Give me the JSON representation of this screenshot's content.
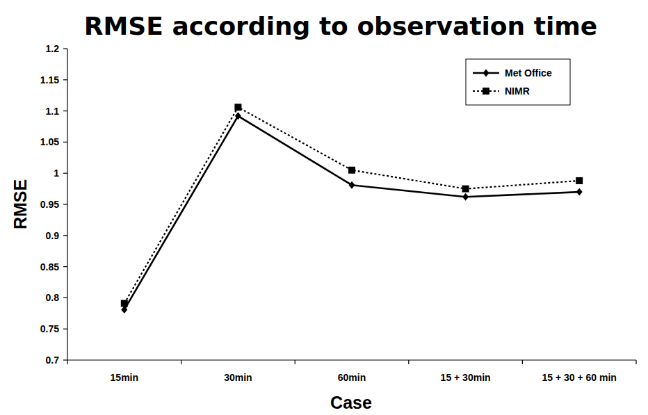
{
  "chart_data": {
    "type": "line",
    "title": "RMSE according to observation time",
    "x_label": "Case",
    "y_label": "RMSE",
    "categories": [
      "15min",
      "30min",
      "60min",
      "15 + 30min",
      "15 + 30 + 60 min"
    ],
    "series": [
      {
        "name": "Met Office",
        "color": "#000000",
        "marker": "diamond",
        "line_style": "solid",
        "values": [
          0.781,
          1.092,
          0.981,
          0.962,
          0.97
        ]
      },
      {
        "name": "NIMR",
        "color": "#000000",
        "marker": "square",
        "line_style": "dotted",
        "values": [
          0.791,
          1.106,
          1.005,
          0.975,
          0.988
        ]
      }
    ],
    "ylim": [
      0.7,
      1.2
    ],
    "yticks": [
      0.7,
      0.75,
      0.8,
      0.85,
      0.9,
      0.95,
      1,
      1.05,
      1.1,
      1.15,
      1.2
    ],
    "grid": false,
    "legend": "top-right"
  }
}
